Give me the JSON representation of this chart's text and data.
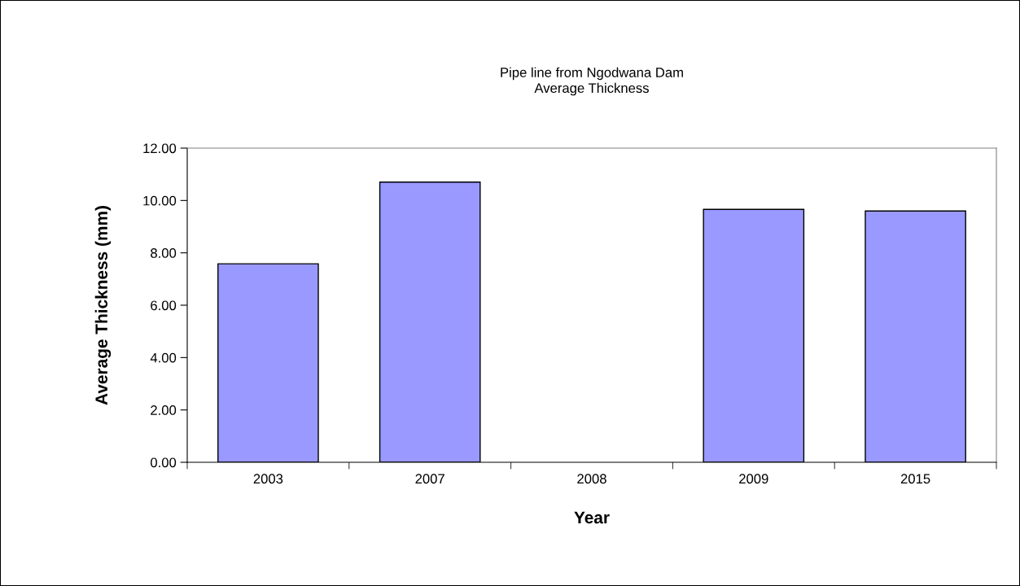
{
  "chart_data": {
    "type": "bar",
    "title": "Pipe line from Ngodwana Dam\nAverage Thickness",
    "xlabel": "Year",
    "ylabel": "Average Thickness (mm)",
    "categories": [
      "2003",
      "2007",
      "2008",
      "2009",
      "2015"
    ],
    "values": [
      7.58,
      10.7,
      null,
      9.66,
      9.6
    ],
    "color": "#9999ff",
    "ylim": [
      0,
      12
    ],
    "yticks": [
      {
        "value": 0,
        "label": "0.00"
      },
      {
        "value": 2,
        "label": "2.00"
      },
      {
        "value": 4,
        "label": "4.00"
      },
      {
        "value": 6,
        "label": "6.00"
      },
      {
        "value": 8,
        "label": "8.00"
      },
      {
        "value": 10,
        "label": "10.00"
      },
      {
        "value": 12,
        "label": "12.00"
      }
    ],
    "grid": false,
    "legend": false
  }
}
